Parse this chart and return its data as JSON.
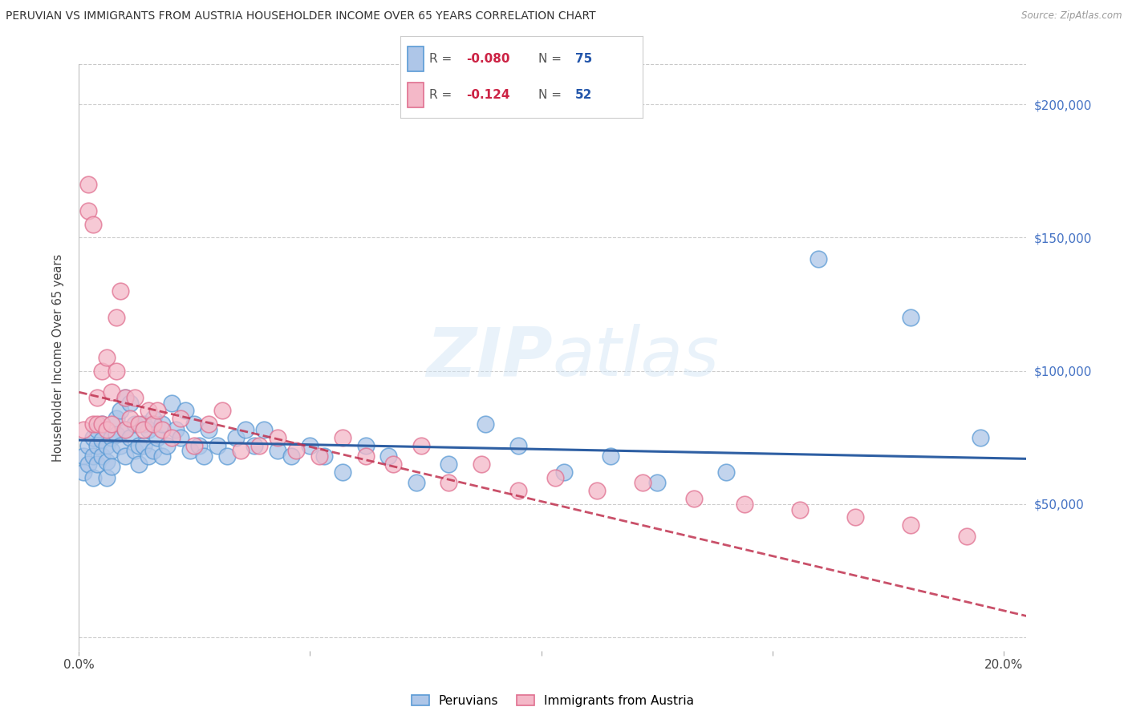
{
  "title": "PERUVIAN VS IMMIGRANTS FROM AUSTRIA HOUSEHOLDER INCOME OVER 65 YEARS CORRELATION CHART",
  "source": "Source: ZipAtlas.com",
  "ylabel": "Householder Income Over 65 years",
  "xlim": [
    0.0,
    0.205
  ],
  "ylim": [
    -5000,
    215000
  ],
  "yticks": [
    0,
    50000,
    100000,
    150000,
    200000
  ],
  "ytick_labels": [
    "",
    "$50,000",
    "$100,000",
    "$150,000",
    "$200,000"
  ],
  "xticks": [
    0.0,
    0.05,
    0.1,
    0.15,
    0.2
  ],
  "xtick_labels": [
    "0.0%",
    "",
    "",
    "",
    "20.0%"
  ],
  "bg_color": "#ffffff",
  "grid_color": "#c8c8c8",
  "right_ytick_color": "#4472c4",
  "peruvian_color": "#aec6e8",
  "peruvian_edge": "#5b9bd5",
  "austria_color": "#f4b8c8",
  "austria_edge": "#e07090",
  "peruvian_line_color": "#2e5fa3",
  "austria_line_color": "#c0314f",
  "watermark": "ZIPatlas",
  "R_peruvian": "-0.080",
  "N_peruvian": "75",
  "R_austria": "-0.124",
  "N_austria": "52",
  "peruvian_x": [
    0.001,
    0.001,
    0.002,
    0.002,
    0.003,
    0.003,
    0.003,
    0.004,
    0.004,
    0.004,
    0.005,
    0.005,
    0.005,
    0.006,
    0.006,
    0.006,
    0.007,
    0.007,
    0.007,
    0.008,
    0.008,
    0.009,
    0.009,
    0.01,
    0.01,
    0.01,
    0.011,
    0.011,
    0.012,
    0.012,
    0.013,
    0.013,
    0.014,
    0.014,
    0.015,
    0.015,
    0.016,
    0.016,
    0.017,
    0.018,
    0.018,
    0.019,
    0.02,
    0.021,
    0.022,
    0.023,
    0.024,
    0.025,
    0.026,
    0.027,
    0.028,
    0.03,
    0.032,
    0.034,
    0.036,
    0.038,
    0.04,
    0.043,
    0.046,
    0.05,
    0.053,
    0.057,
    0.062,
    0.067,
    0.073,
    0.08,
    0.088,
    0.095,
    0.105,
    0.115,
    0.125,
    0.14,
    0.16,
    0.18,
    0.195
  ],
  "peruvian_y": [
    68000,
    62000,
    72000,
    65000,
    75000,
    68000,
    60000,
    78000,
    72000,
    65000,
    80000,
    74000,
    68000,
    72000,
    66000,
    60000,
    75000,
    70000,
    64000,
    82000,
    76000,
    85000,
    72000,
    90000,
    78000,
    68000,
    88000,
    75000,
    80000,
    70000,
    72000,
    65000,
    80000,
    72000,
    78000,
    68000,
    82000,
    70000,
    75000,
    80000,
    68000,
    72000,
    88000,
    78000,
    75000,
    85000,
    70000,
    80000,
    72000,
    68000,
    78000,
    72000,
    68000,
    75000,
    78000,
    72000,
    78000,
    70000,
    68000,
    72000,
    68000,
    62000,
    72000,
    68000,
    58000,
    65000,
    80000,
    72000,
    62000,
    68000,
    58000,
    62000,
    142000,
    120000,
    75000
  ],
  "austria_x": [
    0.001,
    0.002,
    0.002,
    0.003,
    0.003,
    0.004,
    0.004,
    0.005,
    0.005,
    0.006,
    0.006,
    0.007,
    0.007,
    0.008,
    0.008,
    0.009,
    0.01,
    0.01,
    0.011,
    0.012,
    0.013,
    0.014,
    0.015,
    0.016,
    0.017,
    0.018,
    0.02,
    0.022,
    0.025,
    0.028,
    0.031,
    0.035,
    0.039,
    0.043,
    0.047,
    0.052,
    0.057,
    0.062,
    0.068,
    0.074,
    0.08,
    0.087,
    0.095,
    0.103,
    0.112,
    0.122,
    0.133,
    0.144,
    0.156,
    0.168,
    0.18,
    0.192
  ],
  "austria_y": [
    78000,
    170000,
    160000,
    155000,
    80000,
    90000,
    80000,
    100000,
    80000,
    78000,
    105000,
    92000,
    80000,
    120000,
    100000,
    130000,
    90000,
    78000,
    82000,
    90000,
    80000,
    78000,
    85000,
    80000,
    85000,
    78000,
    75000,
    82000,
    72000,
    80000,
    85000,
    70000,
    72000,
    75000,
    70000,
    68000,
    75000,
    68000,
    65000,
    72000,
    58000,
    65000,
    55000,
    60000,
    55000,
    58000,
    52000,
    50000,
    48000,
    45000,
    42000,
    38000
  ]
}
